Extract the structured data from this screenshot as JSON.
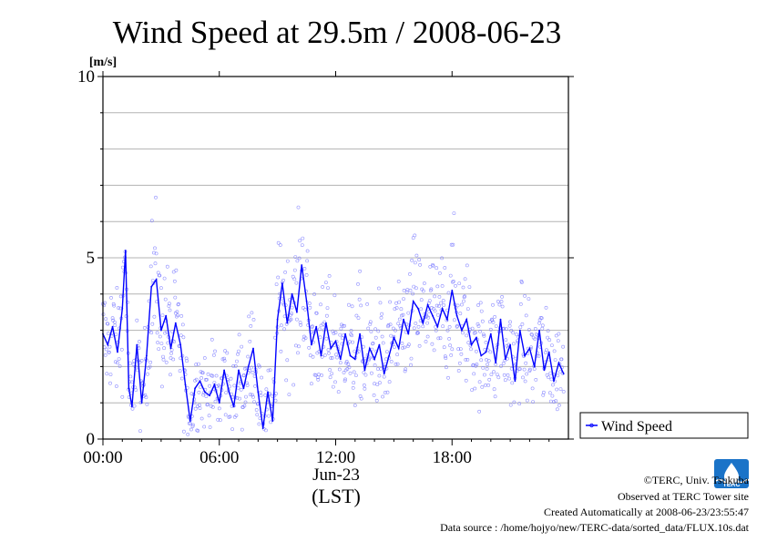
{
  "chart_data": {
    "type": "scatter",
    "title": "Wind Speed at 29.5m / 2008-06-23",
    "ylabel": "[m/s]",
    "xlabel": "(LST)",
    "x_date_label": "Jun-23",
    "xlim": [
      "00:00",
      "24:00"
    ],
    "ylim": [
      0,
      10
    ],
    "x_ticks": [
      "00:00",
      "06:00",
      "12:00",
      "18:00"
    ],
    "y_ticks": [
      "0",
      "5",
      "10"
    ],
    "grid": true,
    "legend_position": "right",
    "series": [
      {
        "name": "Wind Speed",
        "color": "#0000ff",
        "scatter_color": "#7b7bff",
        "x": [
          "00:00",
          "00:15",
          "00:30",
          "00:45",
          "01:00",
          "01:10",
          "01:20",
          "01:30",
          "01:45",
          "02:00",
          "02:15",
          "02:30",
          "02:45",
          "03:00",
          "03:15",
          "03:30",
          "03:45",
          "04:00",
          "04:15",
          "04:30",
          "04:45",
          "05:00",
          "05:15",
          "05:30",
          "05:45",
          "06:00",
          "06:15",
          "06:30",
          "06:45",
          "07:00",
          "07:15",
          "07:30",
          "07:45",
          "08:00",
          "08:15",
          "08:30",
          "08:45",
          "09:00",
          "09:15",
          "09:30",
          "09:45",
          "10:00",
          "10:15",
          "10:30",
          "10:45",
          "11:00",
          "11:15",
          "11:30",
          "11:45",
          "12:00",
          "12:15",
          "12:30",
          "12:45",
          "13:00",
          "13:15",
          "13:30",
          "13:45",
          "14:00",
          "14:15",
          "14:30",
          "14:45",
          "15:00",
          "15:15",
          "15:30",
          "15:45",
          "16:00",
          "16:15",
          "16:30",
          "16:45",
          "17:00",
          "17:15",
          "17:30",
          "17:45",
          "18:00",
          "18:15",
          "18:30",
          "18:45",
          "19:00",
          "19:15",
          "19:30",
          "19:45",
          "20:00",
          "20:15",
          "20:30",
          "20:45",
          "21:00",
          "21:15",
          "21:30",
          "21:45",
          "22:00",
          "22:15",
          "22:30",
          "22:45",
          "23:00",
          "23:15",
          "23:30",
          "23:45"
        ],
        "y": [
          2.9,
          2.6,
          3.1,
          2.4,
          3.6,
          5.2,
          1.4,
          0.9,
          2.6,
          1.0,
          2.3,
          4.2,
          4.4,
          3.0,
          3.4,
          2.5,
          3.2,
          2.6,
          1.5,
          0.5,
          1.4,
          1.6,
          1.3,
          1.2,
          1.5,
          1.0,
          1.9,
          1.3,
          0.9,
          1.9,
          1.4,
          2.0,
          2.5,
          1.3,
          0.3,
          1.3,
          0.5,
          3.3,
          4.3,
          3.2,
          4.0,
          3.5,
          4.8,
          3.8,
          2.6,
          3.1,
          2.3,
          3.2,
          2.5,
          2.7,
          2.2,
          2.9,
          2.3,
          2.2,
          2.9,
          1.9,
          2.5,
          2.2,
          2.6,
          1.8,
          2.3,
          2.8,
          2.5,
          3.3,
          2.9,
          3.8,
          3.6,
          3.2,
          3.7,
          3.4,
          3.1,
          3.6,
          3.3,
          4.1,
          3.4,
          3.0,
          3.3,
          2.6,
          2.8,
          2.3,
          2.4,
          2.9,
          2.1,
          3.3,
          2.2,
          2.6,
          1.6,
          3.0,
          2.3,
          2.5,
          2.0,
          3.0,
          1.9,
          2.4,
          1.6,
          2.1,
          1.8
        ]
      }
    ]
  },
  "credits": {
    "copyright": "©TERC, Univ. Tsukuba",
    "site": "Observed at TERC Tower site",
    "created": "Created Automatically at 2008-06-23/23:55:47",
    "source": "Data source : /home/hojyo/new/TERC-data/sorted_data/FLUX.10s.dat",
    "logo_text": "TERC"
  }
}
